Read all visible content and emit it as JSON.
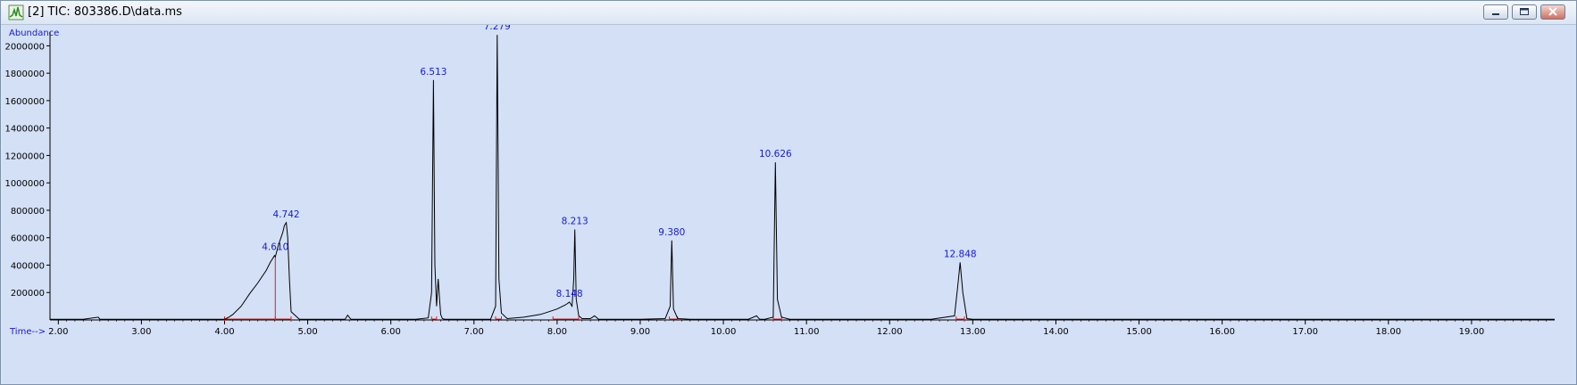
{
  "window": {
    "title": "[2] TIC: 803386.D\\data.ms",
    "app_icon": "chromatogram-app-icon",
    "buttons": [
      "minimize",
      "maximize",
      "close"
    ]
  },
  "colors": {
    "plot_background": "#d3e0f6",
    "trace": "#000000",
    "baseline_marker": "#e02020",
    "label": "#1a1ad0"
  },
  "chart_data": {
    "type": "line",
    "ylabel": "Abundance",
    "xlabel": "Time-->",
    "xlim": [
      1.9,
      20.0
    ],
    "ylim": [
      0,
      2100000
    ],
    "x_ticks": [
      "2.00",
      "3.00",
      "4.00",
      "5.00",
      "6.00",
      "7.00",
      "8.00",
      "9.00",
      "10.00",
      "11.00",
      "12.00",
      "13.00",
      "14.00",
      "15.00",
      "16.00",
      "17.00",
      "18.00",
      "19.00"
    ],
    "y_ticks": [
      "200000",
      "400000",
      "600000",
      "800000",
      "1000000",
      "1200000",
      "1400000",
      "1600000",
      "1800000",
      "2000000"
    ],
    "grid": false,
    "peaks": [
      {
        "label": "4.610",
        "rt": 4.61,
        "abundance": 470000
      },
      {
        "label": "4.742",
        "rt": 4.742,
        "abundance": 710000
      },
      {
        "label": "6.513",
        "rt": 6.513,
        "abundance": 1750000
      },
      {
        "label": "7.279",
        "rt": 7.279,
        "abundance": 2080000
      },
      {
        "label": "8.148",
        "rt": 8.148,
        "abundance": 130000
      },
      {
        "label": "8.213",
        "rt": 8.213,
        "abundance": 660000
      },
      {
        "label": "9.380",
        "rt": 9.38,
        "abundance": 580000
      },
      {
        "label": "10.626",
        "rt": 10.626,
        "abundance": 1150000
      },
      {
        "label": "12.848",
        "rt": 12.848,
        "abundance": 420000
      }
    ],
    "series": [
      {
        "x": [
          1.9,
          2.3,
          2.48,
          2.5,
          2.52,
          3.0,
          3.5,
          4.0,
          4.05,
          4.1,
          4.2,
          4.3,
          4.4,
          4.5,
          4.55,
          4.6,
          4.61,
          4.65,
          4.7,
          4.72,
          4.742,
          4.76,
          4.78,
          4.8,
          4.9,
          5.0,
          5.45,
          5.48,
          5.5,
          5.52,
          5.6,
          6.0,
          6.3,
          6.45,
          6.49,
          6.513,
          6.53,
          6.55,
          6.57,
          6.59,
          6.6,
          6.62,
          6.65,
          7.0,
          7.2,
          7.26,
          7.279,
          7.29,
          7.3,
          7.33,
          7.4,
          7.6,
          7.8,
          7.9,
          8.0,
          8.1,
          8.148,
          8.18,
          8.2,
          8.213,
          8.23,
          8.26,
          8.3,
          8.4,
          8.45,
          8.5,
          9.0,
          9.3,
          9.36,
          9.38,
          9.4,
          9.45,
          9.6,
          10.0,
          10.3,
          10.4,
          10.42,
          10.44,
          10.5,
          10.6,
          10.626,
          10.65,
          10.7,
          10.8,
          12.5,
          12.78,
          12.82,
          12.848,
          12.88,
          12.93,
          13.0,
          14.0,
          15.0,
          16.0,
          17.0,
          18.0,
          19.0,
          20.0
        ],
        "y": [
          5000,
          5000,
          20000,
          5000,
          5000,
          5000,
          5000,
          5000,
          20000,
          40000,
          100000,
          190000,
          270000,
          360000,
          420000,
          470000,
          460000,
          550000,
          640000,
          690000,
          710000,
          600000,
          300000,
          60000,
          5000,
          5000,
          5000,
          35000,
          20000,
          5000,
          5000,
          5000,
          5000,
          15000,
          200000,
          1750000,
          400000,
          100000,
          300000,
          120000,
          40000,
          10000,
          5000,
          5000,
          5000,
          100000,
          2080000,
          1200000,
          300000,
          50000,
          10000,
          20000,
          40000,
          60000,
          80000,
          110000,
          130000,
          100000,
          300000,
          660000,
          150000,
          30000,
          10000,
          10000,
          30000,
          5000,
          5000,
          10000,
          100000,
          580000,
          80000,
          10000,
          5000,
          5000,
          5000,
          30000,
          15000,
          5000,
          5000,
          20000,
          1150000,
          150000,
          20000,
          5000,
          5000,
          30000,
          250000,
          420000,
          200000,
          10000,
          5000,
          5000,
          5000,
          5000,
          5000,
          5000,
          5000,
          5000
        ]
      }
    ],
    "baseline_markers": [
      4.0,
      4.61,
      4.8,
      6.49,
      6.55,
      7.26,
      7.33,
      7.95,
      8.26,
      9.35,
      9.45,
      10.6,
      10.7,
      12.8,
      12.9
    ]
  }
}
